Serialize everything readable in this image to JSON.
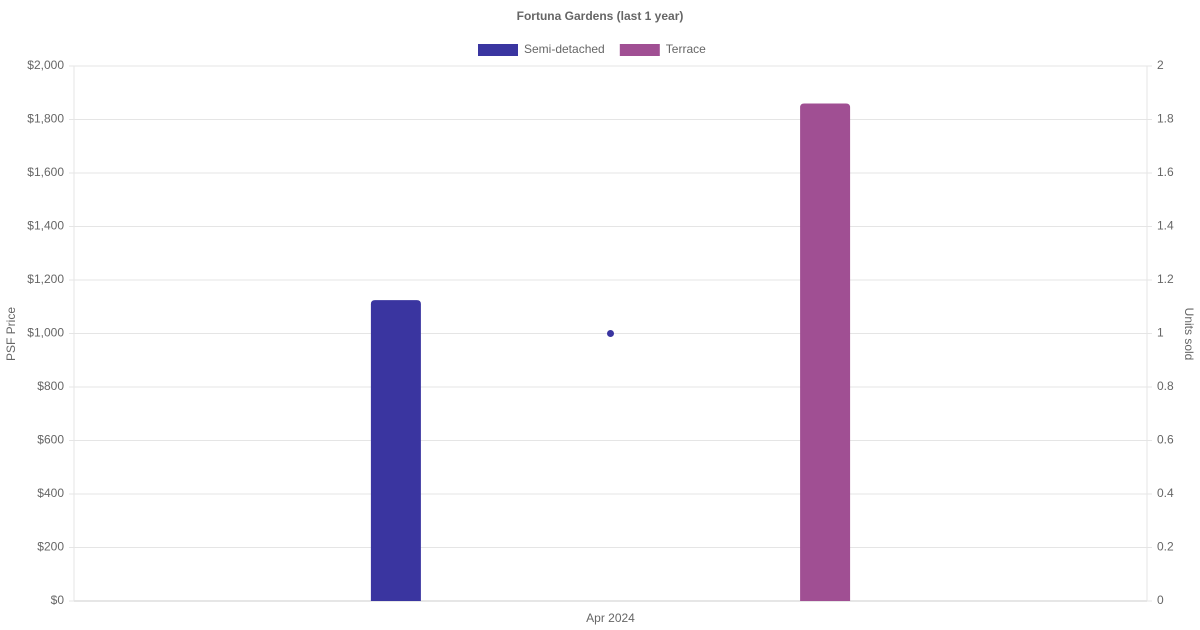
{
  "chart_data": {
    "type": "bar",
    "title": "Fortuna Gardens (last 1 year)",
    "categories": [
      "Apr 2024"
    ],
    "series": [
      {
        "name": "Semi-detached",
        "color": "#3a35a0",
        "values": [
          1125
        ]
      },
      {
        "name": "Terrace",
        "color": "#a04f93",
        "values": [
          1860
        ]
      },
      {
        "type": "line",
        "color": "#3a35a0",
        "axis": "y2",
        "values": [
          1
        ]
      }
    ],
    "ylabel": "PSF Price",
    "y2label": "Units sold",
    "ylim": [
      0,
      2000
    ],
    "yticks": [
      {
        "value": 0,
        "label": "$0"
      },
      {
        "value": 200,
        "label": "$200"
      },
      {
        "value": 400,
        "label": "$400"
      },
      {
        "value": 600,
        "label": "$600"
      },
      {
        "value": 800,
        "label": "$800"
      },
      {
        "value": 1000,
        "label": "$1,000"
      },
      {
        "value": 1200,
        "label": "$1,200"
      },
      {
        "value": 1400,
        "label": "$1,400"
      },
      {
        "value": 1600,
        "label": "$1,600"
      },
      {
        "value": 1800,
        "label": "$1,800"
      },
      {
        "value": 2000,
        "label": "$2,000"
      }
    ],
    "y2lim": [
      0,
      2
    ],
    "y2ticks": [
      0,
      0.2,
      0.4,
      0.6,
      0.8,
      1,
      1.2,
      1.4,
      1.6,
      1.8,
      2
    ],
    "grid": true,
    "legend": "top"
  }
}
